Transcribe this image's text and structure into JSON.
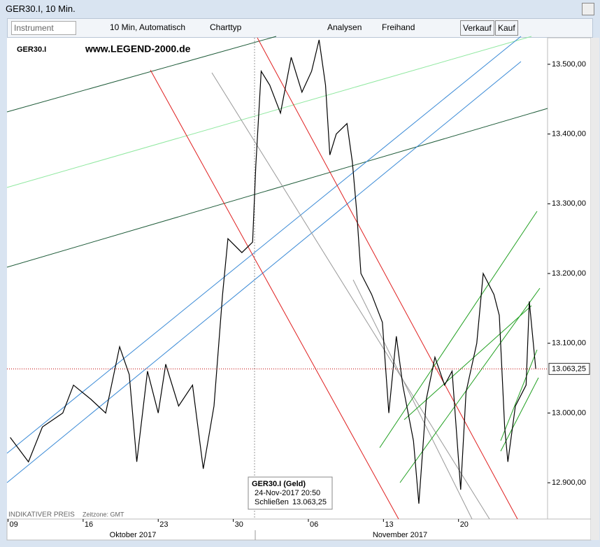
{
  "window": {
    "title": "GER30.I, 10 Min."
  },
  "toolbar": {
    "instrument": "Instrument",
    "interval": "10 Min,  Automatisch",
    "charttyp": "Charttyp",
    "analysen": "Analysen",
    "freihand": "Freihand",
    "verkauf": "Verkauf",
    "kauf": "Kauf"
  },
  "chart_data": {
    "type": "line",
    "watermark": "www.LEGEND-2000.de",
    "footer": "INDIKATIVER PREIS",
    "timezone": "Zeitzone: GMT",
    "months": [
      "Oktober 2017",
      "November 2017"
    ],
    "x": [
      9.2,
      10.9,
      12.2,
      14.1,
      15.1,
      16.7,
      18.1,
      19.4,
      20.3,
      21.0,
      22.0,
      23.0,
      23.7,
      24.9,
      26.2,
      27.2,
      28.2,
      29.0,
      29.5,
      30.8,
      31.8,
      32.1,
      32.6,
      33.4,
      34.4,
      35.4,
      36.4,
      37.3,
      38.0,
      38.6,
      39.0,
      39.6,
      40.6,
      41.1,
      41.5,
      41.9,
      42.9,
      43.9,
      44.5,
      45.2,
      45.8,
      46.8,
      47.3,
      48.0,
      48.8,
      49.7,
      50.4,
      51.2,
      51.7,
      52.7,
      53.3,
      54.3,
      54.8,
      55.3,
      55.6,
      56.3,
      57.3,
      57.6,
      58.2
    ],
    "series": [
      {
        "name": "GER30.I",
        "color": "#000000",
        "values": [
          12965,
          12930,
          12980,
          13000,
          13040,
          13020,
          13000,
          13095,
          13055,
          12930,
          13060,
          13000,
          13070,
          13010,
          13040,
          12920,
          13010,
          13170,
          13250,
          13230,
          13245,
          13355,
          13490,
          13470,
          13430,
          13510,
          13460,
          13490,
          13535,
          13470,
          13370,
          13400,
          13415,
          13360,
          13290,
          13200,
          13170,
          13130,
          13000,
          13110,
          13040,
          12960,
          12870,
          13020,
          13080,
          13040,
          13060,
          12890,
          13030,
          13100,
          13200,
          13170,
          13140,
          12980,
          12930,
          13010,
          13040,
          13160,
          13063.25
        ]
      }
    ],
    "xlim": [
      8.9,
      59.3
    ],
    "xticks": [
      {
        "value": 9,
        "label": "09"
      },
      16,
      23,
      30,
      {
        "value": 37,
        "label": "06"
      },
      {
        "value": 44,
        "label": "13"
      },
      {
        "value": 51,
        "label": "20"
      }
    ],
    "ylim": [
      12848,
      13538
    ],
    "yticks": [
      {
        "value": 12900,
        "label": "12.900,00"
      },
      {
        "value": 13000,
        "label": "13.000,00"
      },
      {
        "value": 13100,
        "label": "13.100,00"
      },
      {
        "value": 13200,
        "label": "13.200,00"
      },
      {
        "value": 13300,
        "label": "13.300,00"
      },
      {
        "value": 13400,
        "label": "13.400,00"
      },
      {
        "value": 13500,
        "label": "13.500,00"
      }
    ],
    "last_price": {
      "value": 13063.25,
      "label": "13.063,25"
    }
  },
  "tooltip": {
    "title": "GER30.I (Geld)",
    "time": "24-Nov-2017 20:50",
    "close_label": "Schließen",
    "close_value": "13.063,25"
  }
}
